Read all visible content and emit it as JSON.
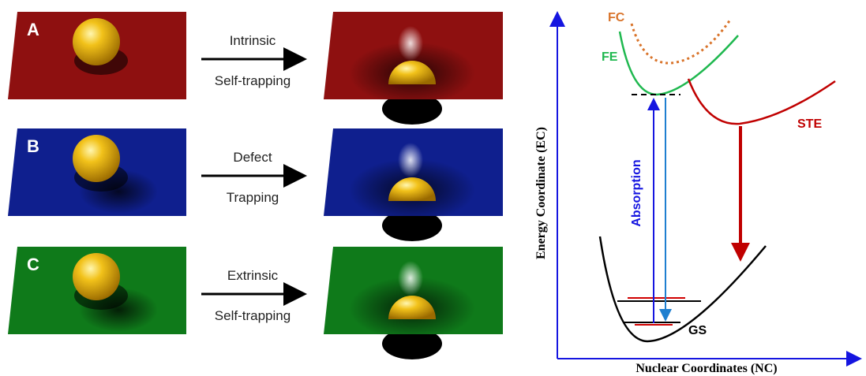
{
  "panels": [
    {
      "label": "A",
      "arrow_text": [
        "Intrinsic",
        "Self-trapping"
      ]
    },
    {
      "label": "B",
      "arrow_text": [
        "Defect",
        "Trapping"
      ]
    },
    {
      "label": "C",
      "arrow_text": [
        "Extrinsic",
        "Self-trapping"
      ]
    }
  ],
  "energy_diagram": {
    "y_axis_title": "Energy Coordinate (EC)",
    "x_axis_title": "Nuclear Coordinates (NC)",
    "curves": {
      "fc": "FC",
      "fe": "FE",
      "ste": "STE",
      "gs": "GS"
    },
    "absorption": "Absorption"
  }
}
